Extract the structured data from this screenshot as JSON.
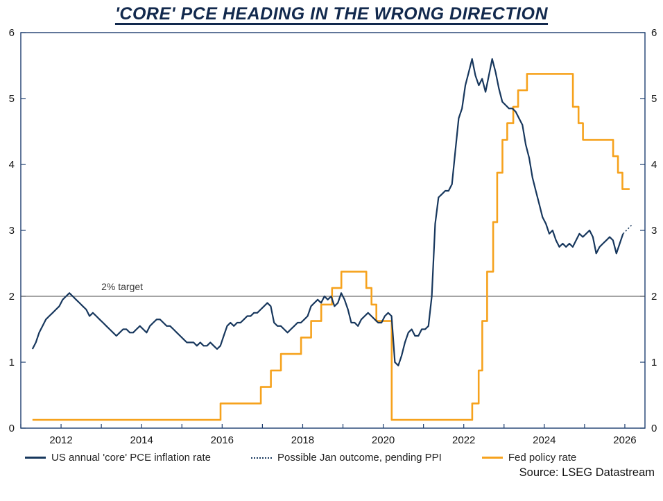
{
  "title": "'CORE' PCE HEADING IN THE WRONG DIRECTION",
  "source": "Source: LSEG Datastream",
  "colors": {
    "navy": "#17375D",
    "orange": "#F6A21D",
    "axis": "#1c3d6e",
    "target_line": "#4a4a4a"
  },
  "legend": [
    {
      "key": "pce",
      "label": "US annual 'core' PCE inflation rate",
      "color": "#17375D",
      "style": "solid"
    },
    {
      "key": "jan-outcome",
      "label": "Possible Jan outcome, pending PPI",
      "color": "#17375D",
      "style": "dotted"
    },
    {
      "key": "fed",
      "label": "Fed policy rate",
      "color": "#F6A21D",
      "style": "solid"
    }
  ],
  "chart_data": {
    "type": "line",
    "title": "'CORE' PCE HEADING IN THE WRONG DIRECTION",
    "xlabel": "",
    "ylabel": "",
    "x_axis": {
      "min": 2011.0,
      "max": 2026.5,
      "tick_interval": 1,
      "label_ticks": [
        2012,
        2014,
        2016,
        2018,
        2020,
        2022,
        2024,
        2026
      ]
    },
    "y_axis": {
      "min": 0,
      "max": 6,
      "ticks": [
        0,
        1,
        2,
        3,
        4,
        5,
        6
      ],
      "both_sides": true
    },
    "grid": false,
    "legend_position": "bottom",
    "annotation": {
      "label": "2% target",
      "y": 2,
      "label_x": 2013.0
    },
    "series": [
      {
        "name": "Fed policy rate",
        "type": "step",
        "color": "#F6A21D",
        "width": 2.6,
        "x": [
          2011.29,
          2015.96,
          2016.96,
          2017.21,
          2017.46,
          2017.96,
          2018.21,
          2018.46,
          2018.73,
          2018.96,
          2019.58,
          2019.71,
          2019.83,
          2020.21,
          2022.21,
          2022.37,
          2022.46,
          2022.58,
          2022.73,
          2022.83,
          2022.96,
          2023.08,
          2023.23,
          2023.35,
          2023.57,
          2024.71,
          2024.85,
          2024.96,
          2025.71,
          2025.83,
          2025.94,
          2026.12
        ],
        "y": [
          0.125,
          0.375,
          0.625,
          0.875,
          1.125,
          1.375,
          1.625,
          1.875,
          2.125,
          2.375,
          2.125,
          1.875,
          1.625,
          0.125,
          0.375,
          0.875,
          1.625,
          2.375,
          3.125,
          3.875,
          4.375,
          4.625,
          4.875,
          5.125,
          5.375,
          4.875,
          4.625,
          4.375,
          4.125,
          3.875,
          3.625,
          3.625
        ]
      },
      {
        "name": "US annual 'core' PCE inflation rate",
        "type": "line",
        "color": "#17375D",
        "width": 2.2,
        "x_start": 2011.29,
        "x_step": 0.083333,
        "y": [
          1.2,
          1.3,
          1.45,
          1.55,
          1.65,
          1.7,
          1.75,
          1.8,
          1.85,
          1.95,
          2.0,
          2.05,
          2.0,
          1.95,
          1.9,
          1.85,
          1.8,
          1.7,
          1.75,
          1.7,
          1.65,
          1.6,
          1.55,
          1.5,
          1.45,
          1.4,
          1.45,
          1.5,
          1.5,
          1.45,
          1.45,
          1.5,
          1.55,
          1.5,
          1.45,
          1.55,
          1.6,
          1.65,
          1.65,
          1.6,
          1.55,
          1.55,
          1.5,
          1.45,
          1.4,
          1.35,
          1.3,
          1.3,
          1.3,
          1.25,
          1.3,
          1.25,
          1.25,
          1.3,
          1.25,
          1.2,
          1.25,
          1.4,
          1.55,
          1.6,
          1.55,
          1.6,
          1.6,
          1.65,
          1.7,
          1.7,
          1.75,
          1.75,
          1.8,
          1.85,
          1.9,
          1.85,
          1.6,
          1.55,
          1.55,
          1.5,
          1.45,
          1.5,
          1.55,
          1.6,
          1.6,
          1.65,
          1.7,
          1.85,
          1.9,
          1.95,
          1.9,
          2.0,
          1.95,
          2.0,
          1.85,
          1.9,
          2.05,
          1.95,
          1.8,
          1.6,
          1.6,
          1.55,
          1.65,
          1.7,
          1.75,
          1.7,
          1.65,
          1.6,
          1.6,
          1.7,
          1.75,
          1.7,
          1.0,
          0.95,
          1.1,
          1.3,
          1.45,
          1.5,
          1.4,
          1.4,
          1.5,
          1.5,
          1.55,
          2.0,
          3.1,
          3.5,
          3.55,
          3.6,
          3.6,
          3.7,
          4.2,
          4.7,
          4.85,
          5.2,
          5.4,
          5.6,
          5.35,
          5.2,
          5.3,
          5.1,
          5.35,
          5.6,
          5.4,
          5.15,
          4.95,
          4.9,
          4.85,
          4.85,
          4.8,
          4.7,
          4.6,
          4.3,
          4.1,
          3.8,
          3.6,
          3.4,
          3.2,
          3.1,
          2.95,
          3.0,
          2.85,
          2.75,
          2.8,
          2.75,
          2.8,
          2.75,
          2.85,
          2.95,
          2.9,
          2.95,
          3.0,
          2.9,
          2.65,
          2.75,
          2.8,
          2.85,
          2.9,
          2.85,
          2.65,
          2.8,
          2.95
        ]
      },
      {
        "name": "Possible Jan outcome, pending PPI",
        "type": "line",
        "color": "#17375D",
        "width": 1.6,
        "dash": "2 3",
        "x": [
          2025.96,
          2026.2
        ],
        "y": [
          2.95,
          3.1
        ]
      }
    ]
  }
}
